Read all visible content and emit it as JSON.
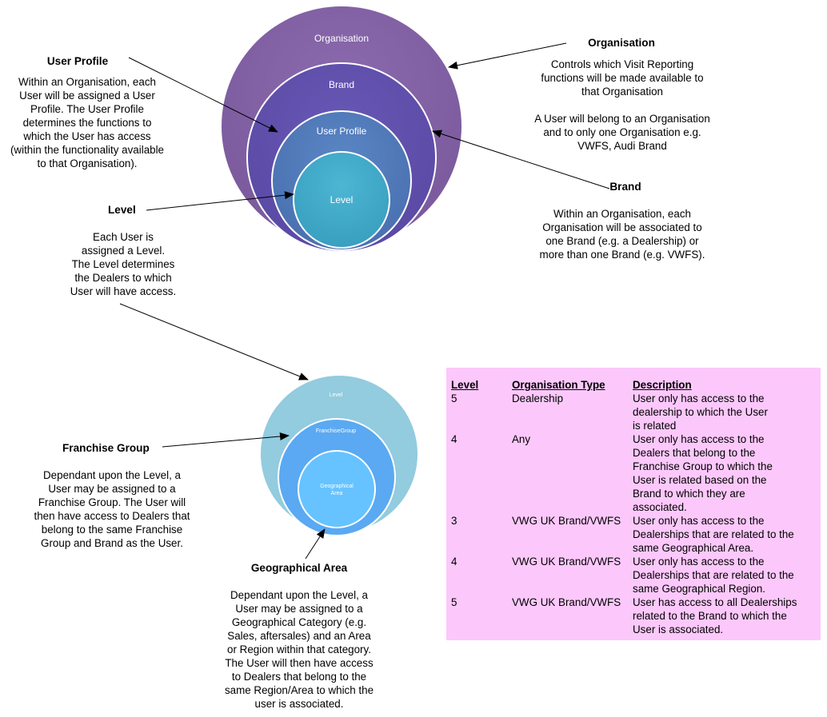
{
  "top_circles": {
    "organisation": "Organisation",
    "brand": "Brand",
    "user_profile": "User Profile",
    "level": "Level"
  },
  "bottom_circles": {
    "level": "Level",
    "franchise_group": "FranchiseGroup",
    "geographical_area_line1": "Geographical",
    "geographical_area_line2": "Area"
  },
  "user_profile_note": {
    "heading": "User Profile",
    "body": "Within an Organisation, each\nUser will be assigned a User\nProfile.  The User Profile\ndetermines the functions to\nwhich the User has access\n(within the functionality available\nto that Organisation)."
  },
  "organisation_note": {
    "heading": "Organisation",
    "body1": "Controls which Visit Reporting\nfunctions will be made available to\nthat Organisation",
    "body2": "A User will belong to an Organisation\nand to only one Organisation e.g.\nVWFS, Audi Brand"
  },
  "brand_note": {
    "heading": "Brand",
    "body": "Within an Organisation, each\nOrganisation will be associated to\none Brand (e.g. a Dealership) or\nmore than one Brand (e.g. VWFS)."
  },
  "level_note": {
    "heading": "Level",
    "body": "Each User is\nassigned a Level.\nThe Level determines\nthe Dealers to which\nUser will have access."
  },
  "franchise_note": {
    "heading": "Franchise Group",
    "body": "Dependant upon the Level, a\nUser may be assigned to a\nFranchise Group.  The User will\nthen have access to Dealers that\nbelong to the same Franchise\nGroup and Brand as the User."
  },
  "geo_note": {
    "heading": "Geographical Area",
    "body": "Dependant upon the Level, a\nUser may be assigned to a\nGeographical Category (e.g.\nSales, aftersales) and an Area\nor Region within that category.\nThe User will then have access\nto Dealers that belong to the\nsame Region/Area to which the\nuser is associated."
  },
  "level_table": {
    "headers": [
      "Level",
      "Organisation Type",
      "Description"
    ],
    "rows": [
      {
        "level": "5",
        "type": "Dealership",
        "description": "User only has access to the\ndealership to which the User\nis related"
      },
      {
        "level": "4",
        "type": "Any",
        "description": "User only has access to the\nDealers that belong to the\nFranchise Group to which the\nUser is related based on the\nBrand to which they are\nassociated."
      },
      {
        "level": "3",
        "type": "VWG UK Brand/VWFS",
        "description": "User only has access to the\nDealerships that are related to the\nsame Geographical Area."
      },
      {
        "level": "4",
        "type": "VWG UK Brand/VWFS",
        "description": "User only has access to the\nDealerships that are related to the\nsame Geographical Region."
      },
      {
        "level": "5",
        "type": "VWG UK Brand/VWFS",
        "description": "User has access to all Dealerships\nrelated to the Brand to which the\nUser is associated."
      }
    ]
  },
  "colors": {
    "organisation_circle": "#7f5fa1",
    "brand_circle": "#6150ad",
    "user_profile_circle": "#4f77b9",
    "level_circle": "#3fa7c8",
    "bottom_level_circle": "#93cbdf",
    "franchise_circle": "#5aa9f2",
    "geo_circle": "#66c3ff",
    "table_background": "#fcc8fb"
  }
}
